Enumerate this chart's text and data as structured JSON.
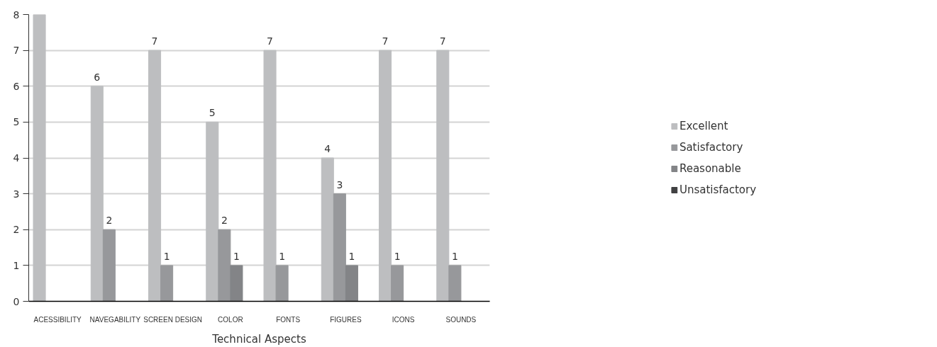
{
  "chart_data": {
    "type": "bar",
    "xlabel": "Technical Aspects",
    "categories": [
      "ACESSIBILITY",
      "NAVEGABILITY",
      "SCREEN DESIGN",
      "COLOR",
      "FONTS",
      "FIGURES",
      "ICONS",
      "SOUNDS"
    ],
    "series": [
      {
        "name": "Excellent",
        "color": "#bdbec0",
        "values": [
          8,
          6,
          7,
          5,
          7,
          4,
          7,
          7
        ],
        "value_labels": [
          null,
          "6",
          "7",
          "5",
          "7",
          "4",
          "7",
          "7"
        ]
      },
      {
        "name": "Satisfactory",
        "color": "#97989b",
        "values": [
          0,
          2,
          1,
          2,
          1,
          3,
          1,
          1
        ],
        "value_labels": [
          null,
          "2",
          "1",
          "2",
          "1",
          "3",
          "1",
          "1"
        ]
      },
      {
        "name": "Reasonable",
        "color": "#838487",
        "values": [
          0,
          0,
          0,
          1,
          0,
          1,
          0,
          0
        ],
        "value_labels": [
          null,
          null,
          null,
          "1",
          null,
          "1",
          null,
          null
        ]
      },
      {
        "name": "Unsatisfactory",
        "color": "#404142",
        "values": [
          0,
          0,
          0,
          0,
          0,
          0,
          0,
          0
        ],
        "value_labels": [
          null,
          null,
          null,
          null,
          null,
          null,
          null,
          null
        ]
      }
    ],
    "ylim": [
      0,
      8
    ],
    "yticks": [
      0,
      1,
      2,
      3,
      4,
      5,
      6,
      7,
      8
    ],
    "grid": "y",
    "legend": "right"
  }
}
